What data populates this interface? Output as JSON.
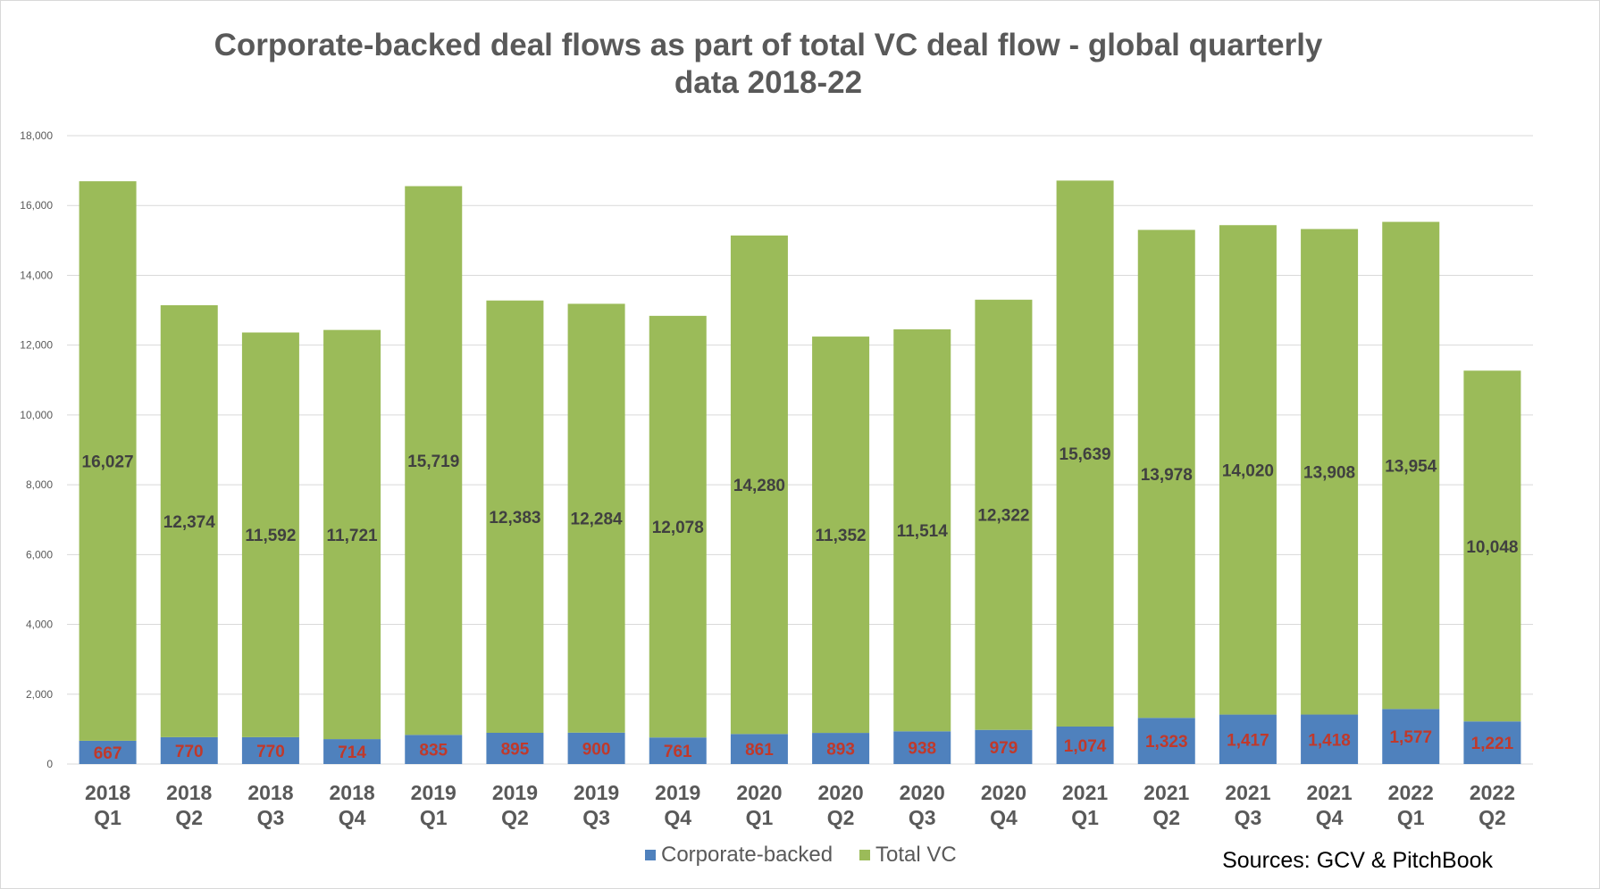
{
  "title_line1": "Corporate-backed deal flows as part of total VC deal flow - global quarterly",
  "title_line2": "data 2018-22",
  "source_note": "Sources: GCV & PitchBook",
  "colors": {
    "corporate": "#4f81bd",
    "total": "#9bbb59",
    "grid": "#d9d9d9"
  },
  "chart_data": {
    "type": "bar",
    "stacked": true,
    "categories": [
      "2018 Q1",
      "2018 Q2",
      "2018 Q3",
      "2018 Q4",
      "2019 Q1",
      "2019 Q2",
      "2019 Q3",
      "2019 Q4",
      "2020 Q1",
      "2020 Q2",
      "2020 Q3",
      "2020 Q4",
      "2021 Q1",
      "2021 Q2",
      "2021 Q3",
      "2021 Q4",
      "2022 Q1",
      "2022 Q2"
    ],
    "series": [
      {
        "name": "Corporate-backed",
        "values": [
          667,
          770,
          770,
          714,
          835,
          895,
          900,
          761,
          861,
          893,
          938,
          979,
          1074,
          1323,
          1417,
          1418,
          1577,
          1221
        ]
      },
      {
        "name": "Total VC",
        "values": [
          16027,
          12374,
          11592,
          11721,
          15719,
          12383,
          12284,
          12078,
          14280,
          11352,
          11514,
          12322,
          15639,
          13978,
          14020,
          13908,
          13954,
          10048
        ]
      }
    ],
    "ylim": [
      0,
      18000
    ],
    "ytick_step": 2000,
    "grid": true,
    "legend": "bottom"
  }
}
